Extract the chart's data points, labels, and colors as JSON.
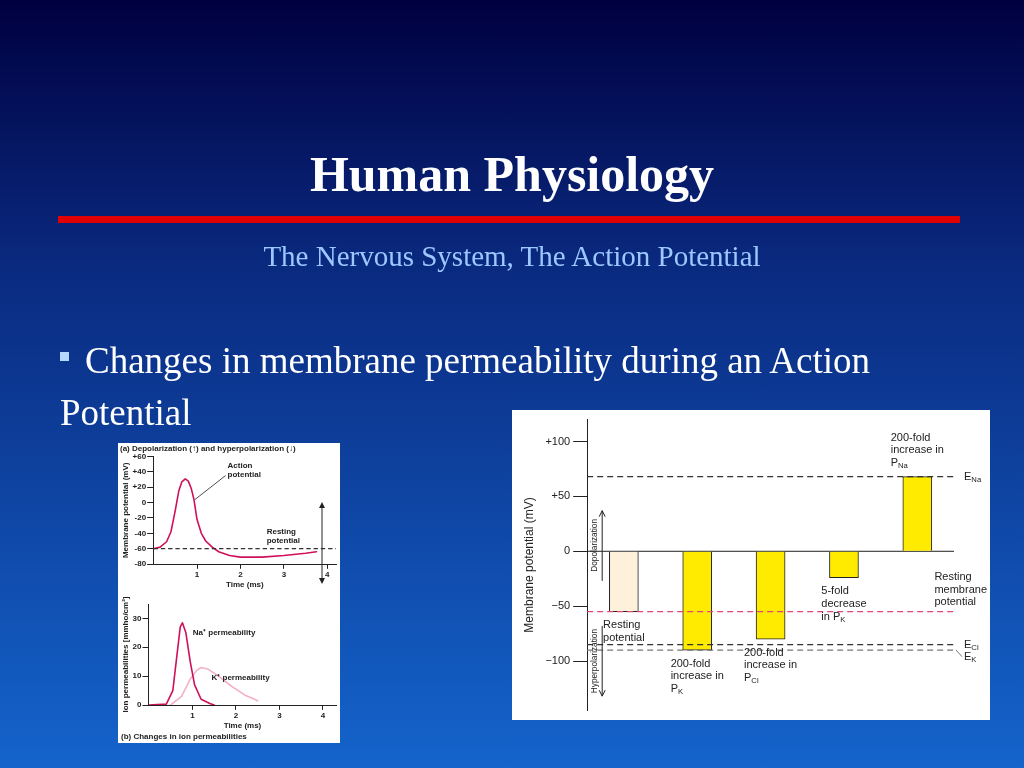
{
  "chart_data": [
    {
      "type": "bar",
      "title": "Human Physiology",
      "subtitle": "The Nervous System, The Action Potential",
      "ylabel": "Membrane potential (mV)",
      "annotations": [
        "Dopolarization",
        "Hyperpolarization"
      ],
      "categories": [
        "Resting potential",
        "200-fold increase in P$_{K}$",
        "200-fold increase in P$_{Cl}$",
        "5-fold decrease in P$_{K}$",
        "200-fold increase in P$_{Na}$"
      ],
      "values": [
        -55,
        -90,
        -80,
        -24,
        68
      ],
      "colors": [
        "#fdf1dc",
        "#ffeb00",
        "#ffeb00",
        "#ffeb00",
        "#ffeb00"
      ],
      "ylim": [
        -145,
        120
      ],
      "yticks": [
        {
          "value": 100,
          "label": "+100"
        },
        {
          "value": 50,
          "label": "+50"
        },
        0,
        {
          "value": -50,
          "label": "−50"
        },
        {
          "value": -100,
          "label": "−100"
        }
      ],
      "ref_lines": [
        {
          "axis": "y",
          "value": 68,
          "label": "E$_{Na}$",
          "color": "#333333",
          "line_style": "dashed"
        },
        {
          "axis": "y",
          "value": -55,
          "label": "Resting membrane potential",
          "color": "#e0457b",
          "line_style": "dashed"
        },
        {
          "axis": "y",
          "value": -85,
          "label": "E$_{Cl}$",
          "color": "#333333",
          "line_style": "dashed"
        },
        {
          "axis": "y",
          "value": -90,
          "label": "E$_{K}$",
          "color": "#777777",
          "line_style": "dashed"
        }
      ]
    },
    {
      "type": "line",
      "title": "(a) Depolarization (↑) and hyperpolarization (↓)",
      "xlabel": "Time (ms)",
      "ylabel": "Membrane potential (mV)",
      "annotations": [
        "Changes in membrane permeability during an Action Potential",
        {
          "text": "Action potential",
          "x": 0.93,
          "y": 4
        }
      ],
      "x": [
        0,
        0.15,
        0.3,
        0.4,
        0.5,
        0.58,
        0.65,
        0.73,
        0.8,
        0.87,
        0.93,
        1.0,
        1.1,
        1.2,
        1.35,
        1.5,
        1.75,
        2.0,
        2.5,
        3.0,
        3.5,
        3.75
      ],
      "series": [
        {
          "color": "#d0105a",
          "values": [
            -60,
            -58,
            -51,
            -38,
            -10,
            15,
            27,
            31,
            28,
            18,
            4,
            -22,
            -40,
            -50,
            -58,
            -64,
            -69,
            -71,
            -71,
            -69,
            -66,
            -64
          ]
        }
      ],
      "xlim": [
        0,
        4.2
      ],
      "xticks": [
        1,
        2,
        3,
        4
      ],
      "ylim": [
        -80,
        60
      ],
      "yticks": [
        {
          "value": 60,
          "label": "+60"
        },
        {
          "value": 40,
          "label": "+40"
        },
        {
          "value": 20,
          "label": "+20"
        },
        0,
        -20,
        -40,
        -60,
        -80
      ],
      "ref_lines": [
        {
          "axis": "y",
          "value": -60,
          "label": "Resting potential",
          "color": "#333333",
          "line_style": "dashed"
        }
      ],
      "marker": "none"
    },
    {
      "type": "line",
      "xlabel": "Time (ms)",
      "ylabel": "Ion permeabilities [mmho/cm²]",
      "annotations": [
        "(b) Changes in ion permeabilities"
      ],
      "series": [
        {
          "name": "Na⁺ permeability",
          "color": "#d0105a",
          "x": [
            0,
            0.4,
            0.55,
            0.65,
            0.72,
            0.77,
            0.85,
            0.95,
            1.05,
            1.2,
            1.4,
            1.5
          ],
          "values": [
            0,
            0.3,
            5,
            18,
            27,
            28.5,
            25,
            15,
            7,
            2,
            0.5,
            0
          ]
        },
        {
          "name": "K⁺ permeability",
          "color": "#f4b0c8",
          "x": [
            0.5,
            0.75,
            0.95,
            1.1,
            1.2,
            1.35,
            1.6,
            1.9,
            2.2,
            2.5
          ],
          "values": [
            0,
            3,
            9,
            12,
            13,
            12.5,
            10,
            6.5,
            3.5,
            1.5
          ]
        }
      ],
      "xlim": [
        0,
        4.3
      ],
      "xticks": [
        1,
        2,
        3,
        4
      ],
      "ylim": [
        0,
        35
      ],
      "yticks": [
        0,
        10,
        20,
        30
      ],
      "marker": "none"
    }
  ]
}
